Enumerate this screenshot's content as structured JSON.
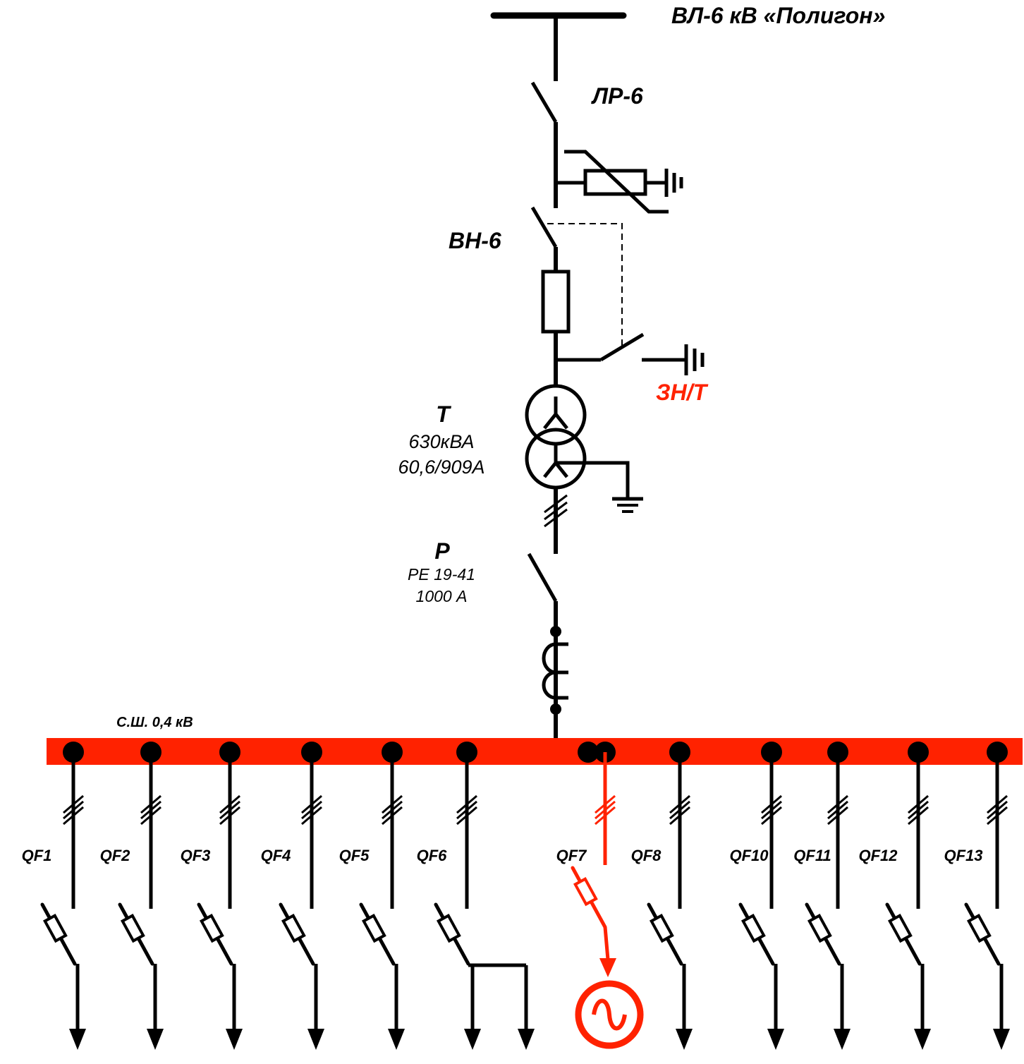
{
  "colors": {
    "line": "#000000",
    "bus": "#ff2200",
    "highlight": "#ff2200"
  },
  "labels": {
    "line_title": "ВЛ-6 кВ «Полигон»",
    "disconnector": "ЛР-6",
    "load_switch": "ВН-6",
    "earthing_switch": "ЗН/Т",
    "transformer_name": "Т",
    "transformer_power": "630кВА",
    "transformer_current": "60,6/909А",
    "switch_name": "Р",
    "switch_type": "РЕ 19-41",
    "switch_current": "1000 А",
    "busbar": "С.Ш. 0,4 кВ"
  },
  "feeders": [
    {
      "label": "QF1",
      "highlight": false
    },
    {
      "label": "QF2",
      "highlight": false
    },
    {
      "label": "QF3",
      "highlight": false
    },
    {
      "label": "QF4",
      "highlight": false
    },
    {
      "label": "QF5",
      "highlight": false
    },
    {
      "label": "QF6",
      "highlight": false
    },
    {
      "label": "QF7",
      "highlight": true
    },
    {
      "label": "QF8",
      "highlight": false
    },
    {
      "label": "QF10",
      "highlight": false
    },
    {
      "label": "QF11",
      "highlight": false
    },
    {
      "label": "QF12",
      "highlight": false
    },
    {
      "label": "QF13",
      "highlight": false
    }
  ]
}
